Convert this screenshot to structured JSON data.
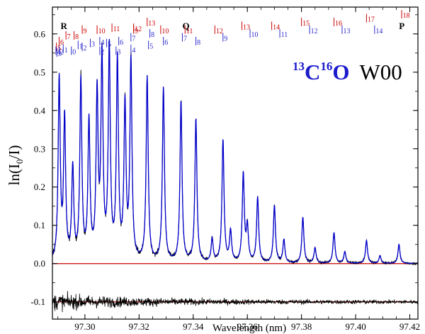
{
  "chart_data": {
    "type": "line",
    "title_parts": {
      "mass1": "13",
      "atom1": "C",
      "mass2": "16",
      "atom2": "O",
      "band": "W00"
    },
    "xlabel": "Wavelength (nm)",
    "ylabel": {
      "main": "ln(I",
      "sub": "0",
      "tail": "/I)"
    },
    "xlim": [
      97.288,
      97.423
    ],
    "ylim": [
      -0.145,
      0.67
    ],
    "xticks": [
      {
        "value": 97.3,
        "label": "97.30"
      },
      {
        "value": 97.32,
        "label": "97.32"
      },
      {
        "value": 97.34,
        "label": "97.34"
      },
      {
        "value": 97.36,
        "label": "97.36"
      },
      {
        "value": 97.38,
        "label": "97.38"
      },
      {
        "value": 97.4,
        "label": "97.40"
      },
      {
        "value": 97.42,
        "label": "97.42"
      }
    ],
    "yticks": [
      {
        "value": -0.1,
        "label": "-0.1"
      },
      {
        "value": 0.0,
        "label": "0.0"
      },
      {
        "value": 0.1,
        "label": "0.1"
      },
      {
        "value": 0.2,
        "label": "0.2"
      },
      {
        "value": 0.3,
        "label": "0.3"
      },
      {
        "value": 0.4,
        "label": "0.4"
      },
      {
        "value": 0.5,
        "label": "0.5"
      },
      {
        "value": 0.6,
        "label": "0.6"
      }
    ],
    "branches": [
      {
        "label": "R",
        "x": 97.291,
        "y": 0.62
      },
      {
        "label": "Q",
        "x": 97.336,
        "y": 0.62
      },
      {
        "label": "P",
        "x": 97.416,
        "y": 0.62
      }
    ],
    "top_assignments": [
      {
        "label": "18",
        "x": 97.417,
        "y": 0.64
      },
      {
        "label": "17",
        "x": 97.404,
        "y": 0.63
      },
      {
        "label": "16",
        "x": 97.392,
        "y": 0.62
      },
      {
        "label": "15",
        "x": 97.38,
        "y": 0.62
      },
      {
        "label": "14",
        "x": 97.369,
        "y": 0.61
      },
      {
        "label": "13",
        "x": 97.358,
        "y": 0.61
      },
      {
        "label": "12",
        "x": 97.348,
        "y": 0.6
      },
      {
        "label": "11",
        "x": 97.337,
        "y": 0.6
      },
      {
        "label": "10",
        "x": 97.328,
        "y": 0.6
      },
      {
        "label": "9",
        "x": 97.318,
        "y": 0.6
      },
      {
        "label": "13",
        "x": 97.323,
        "y": 0.62
      },
      {
        "label": "12",
        "x": 97.318,
        "y": 0.605
      },
      {
        "label": "11",
        "x": 97.31,
        "y": 0.605
      },
      {
        "label": "10",
        "x": 97.3045,
        "y": 0.6
      },
      {
        "label": "9",
        "x": 97.299,
        "y": 0.6
      },
      {
        "label": "8",
        "x": 97.296,
        "y": 0.585
      },
      {
        "label": "7",
        "x": 97.293,
        "y": 0.585
      },
      {
        "label": "6",
        "x": 97.2905,
        "y": 0.57
      },
      {
        "label": "5",
        "x": 97.2895,
        "y": 0.555
      }
    ],
    "bottom_assignments": [
      {
        "label": "14",
        "x": 97.407,
        "y": 0.6
      },
      {
        "label": "13",
        "x": 97.395,
        "y": 0.6
      },
      {
        "label": "12",
        "x": 97.383,
        "y": 0.6
      },
      {
        "label": "11",
        "x": 97.372,
        "y": 0.59
      },
      {
        "label": "10",
        "x": 97.361,
        "y": 0.59
      },
      {
        "label": "9",
        "x": 97.351,
        "y": 0.58
      },
      {
        "label": "8",
        "x": 97.341,
        "y": 0.57
      },
      {
        "label": "7",
        "x": 97.336,
        "y": 0.58
      },
      {
        "label": "6",
        "x": 97.329,
        "y": 0.57
      },
      {
        "label": "8",
        "x": 97.324,
        "y": 0.59
      },
      {
        "label": "5",
        "x": 97.3235,
        "y": 0.56
      },
      {
        "label": "7",
        "x": 97.317,
        "y": 0.58
      },
      {
        "label": "4",
        "x": 97.317,
        "y": 0.55
      },
      {
        "label": "6",
        "x": 97.3125,
        "y": 0.57
      },
      {
        "label": "3",
        "x": 97.3115,
        "y": 0.545
      },
      {
        "label": "5",
        "x": 97.308,
        "y": 0.565
      },
      {
        "label": "2",
        "x": 97.3055,
        "y": 0.545
      },
      {
        "label": "4",
        "x": 97.3055,
        "y": 0.57
      },
      {
        "label": "3",
        "x": 97.302,
        "y": 0.565
      },
      {
        "label": "2",
        "x": 97.299,
        "y": 0.555
      },
      {
        "label": "1",
        "x": 97.2975,
        "y": 0.56
      },
      {
        "label": "0",
        "x": 97.295,
        "y": 0.545
      },
      {
        "label": "1",
        "x": 97.292,
        "y": 0.55
      },
      {
        "label": "2",
        "x": 97.2905,
        "y": 0.545
      },
      {
        "label": "3",
        "x": 97.2897,
        "y": 0.54
      },
      {
        "label": "4",
        "x": 97.2893,
        "y": 0.545
      }
    ],
    "peaks": [
      {
        "x": 97.2905,
        "y": 0.474,
        "w": 0.00045
      },
      {
        "x": 97.2925,
        "y": 0.37,
        "w": 0.00045
      },
      {
        "x": 97.2955,
        "y": 0.24,
        "w": 0.00045
      },
      {
        "x": 97.2985,
        "y": 0.47,
        "w": 0.00045
      },
      {
        "x": 97.3015,
        "y": 0.36,
        "w": 0.00045
      },
      {
        "x": 97.3045,
        "y": 0.43,
        "w": 0.00045
      },
      {
        "x": 97.3063,
        "y": 0.525,
        "w": 0.00045
      },
      {
        "x": 97.309,
        "y": 0.55,
        "w": 0.00045
      },
      {
        "x": 97.312,
        "y": 0.52,
        "w": 0.00045
      },
      {
        "x": 97.3148,
        "y": 0.4,
        "w": 0.00045
      },
      {
        "x": 97.317,
        "y": 0.52,
        "w": 0.00045
      },
      {
        "x": 97.323,
        "y": 0.482,
        "w": 0.00045
      },
      {
        "x": 97.329,
        "y": 0.455,
        "w": 0.00045
      },
      {
        "x": 97.3355,
        "y": 0.42,
        "w": 0.00045
      },
      {
        "x": 97.341,
        "y": 0.375,
        "w": 0.00045
      },
      {
        "x": 97.347,
        "y": 0.06,
        "w": 0.00045
      },
      {
        "x": 97.351,
        "y": 0.32,
        "w": 0.00045
      },
      {
        "x": 97.3538,
        "y": 0.08,
        "w": 0.00045
      },
      {
        "x": 97.3585,
        "y": 0.23,
        "w": 0.00045
      },
      {
        "x": 97.36,
        "y": 0.09,
        "w": 0.00045
      },
      {
        "x": 97.3638,
        "y": 0.17,
        "w": 0.00045
      },
      {
        "x": 97.37,
        "y": 0.15,
        "w": 0.00045
      },
      {
        "x": 97.3735,
        "y": 0.06,
        "w": 0.00045
      },
      {
        "x": 97.3805,
        "y": 0.12,
        "w": 0.00045
      },
      {
        "x": 97.385,
        "y": 0.04,
        "w": 0.00045
      },
      {
        "x": 97.392,
        "y": 0.08,
        "w": 0.00045
      },
      {
        "x": 97.396,
        "y": 0.03,
        "w": 0.00045
      },
      {
        "x": 97.404,
        "y": 0.06,
        "w": 0.00045
      },
      {
        "x": 97.409,
        "y": 0.02,
        "w": 0.00045
      },
      {
        "x": 97.416,
        "y": 0.05,
        "w": 0.00045
      }
    ],
    "series": [
      {
        "role": "model",
        "color": "#0000cc"
      },
      {
        "role": "data",
        "color": "#000000"
      },
      {
        "role": "residual",
        "color": "#000000",
        "offset": -0.1
      }
    ],
    "reference_lines": [
      {
        "y": 0.0,
        "color": "#cc0000"
      },
      {
        "y": -0.1,
        "color": "#cc0000"
      }
    ],
    "colors": {
      "title_blue": "#1a1acc",
      "label_red": "#cc0000",
      "label_blue": "#2a2acc"
    },
    "grid": false,
    "legend": "none"
  }
}
